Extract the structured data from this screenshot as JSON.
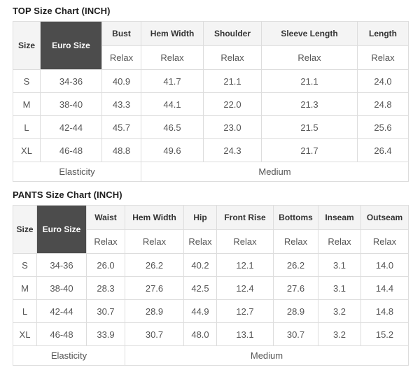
{
  "colors": {
    "header_bg": "#f4f4f4",
    "euro_cell_bg": "#4c4c4c",
    "euro_cell_text": "#ffffff",
    "border": "#dddddd",
    "title_text": "#1d1d1d",
    "header_text": "#333333",
    "cell_text": "#555555"
  },
  "top_chart": {
    "title": "TOP Size Chart (INCH)",
    "size_header": "Size",
    "euro_header": "Euro Size",
    "fit_label": "Relax",
    "columns": [
      "Bust",
      "Hem Width",
      "Shoulder",
      "Sleeve Length",
      "Length"
    ],
    "rows": [
      {
        "size": "S",
        "euro": "34-36",
        "values": [
          "40.9",
          "41.7",
          "21.1",
          "21.1",
          "24.0"
        ]
      },
      {
        "size": "M",
        "euro": "38-40",
        "values": [
          "43.3",
          "44.1",
          "22.0",
          "21.3",
          "24.8"
        ]
      },
      {
        "size": "L",
        "euro": "42-44",
        "values": [
          "45.7",
          "46.5",
          "23.0",
          "21.5",
          "25.6"
        ]
      },
      {
        "size": "XL",
        "euro": "46-48",
        "values": [
          "48.8",
          "49.6",
          "24.3",
          "21.7",
          "26.4"
        ]
      }
    ],
    "footer": {
      "label": "Elasticity",
      "value": "Medium"
    }
  },
  "pants_chart": {
    "title": "PANTS Size Chart (INCH)",
    "size_header": "Size",
    "euro_header": "Euro Size",
    "fit_label": "Relax",
    "columns": [
      "Waist",
      "Hem Width",
      "Hip",
      "Front Rise",
      "Bottoms",
      "Inseam",
      "Outseam"
    ],
    "rows": [
      {
        "size": "S",
        "euro": "34-36",
        "values": [
          "26.0",
          "26.2",
          "40.2",
          "12.1",
          "26.2",
          "3.1",
          "14.0"
        ]
      },
      {
        "size": "M",
        "euro": "38-40",
        "values": [
          "28.3",
          "27.6",
          "42.5",
          "12.4",
          "27.6",
          "3.1",
          "14.4"
        ]
      },
      {
        "size": "L",
        "euro": "42-44",
        "values": [
          "30.7",
          "28.9",
          "44.9",
          "12.7",
          "28.9",
          "3.2",
          "14.8"
        ]
      },
      {
        "size": "XL",
        "euro": "46-48",
        "values": [
          "33.9",
          "30.7",
          "48.0",
          "13.1",
          "30.7",
          "3.2",
          "15.2"
        ]
      }
    ],
    "footer": {
      "label": "Elasticity",
      "value": "Medium"
    }
  }
}
